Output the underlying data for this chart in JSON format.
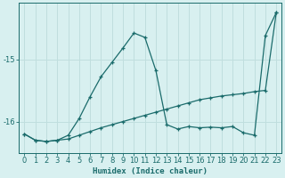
{
  "xlabel": "Humidex (Indice chaleur)",
  "background_color": "#d8f0f0",
  "grid_color": "#c0dede",
  "line_color": "#1a6b6b",
  "xlim": [
    -0.5,
    23.5
  ],
  "ylim": [
    -16.5,
    -14.1
  ],
  "xticks": [
    0,
    1,
    2,
    3,
    4,
    5,
    6,
    7,
    8,
    9,
    10,
    11,
    12,
    13,
    14,
    15,
    16,
    17,
    18,
    19,
    20,
    21,
    22,
    23
  ],
  "yticks": [
    -16,
    -15
  ],
  "line1_x": [
    0,
    1,
    2,
    3,
    4,
    5,
    6,
    7,
    8,
    9,
    10,
    11,
    12,
    13,
    14,
    15,
    16,
    17,
    18,
    19,
    20,
    21,
    22,
    23
  ],
  "line1_y": [
    -16.2,
    -16.3,
    -16.32,
    -16.3,
    -16.28,
    -16.22,
    -16.16,
    -16.1,
    -16.05,
    -16.0,
    -15.95,
    -15.9,
    -15.85,
    -15.8,
    -15.75,
    -15.7,
    -15.65,
    -15.62,
    -15.59,
    -15.57,
    -15.55,
    -15.52,
    -15.5,
    -14.25
  ],
  "line2_x": [
    0,
    1,
    2,
    3,
    4,
    5,
    6,
    7,
    8,
    9,
    10,
    11,
    12,
    13,
    14,
    15,
    16,
    17,
    18,
    19,
    20,
    21,
    22,
    23
  ],
  "line2_y": [
    -16.2,
    -16.3,
    -16.32,
    -16.3,
    -16.22,
    -15.95,
    -15.6,
    -15.28,
    -15.05,
    -14.82,
    -14.58,
    -14.65,
    -15.18,
    -16.05,
    -16.12,
    -16.08,
    -16.1,
    -16.09,
    -16.1,
    -16.08,
    -16.18,
    -16.22,
    -14.62,
    -14.25
  ]
}
